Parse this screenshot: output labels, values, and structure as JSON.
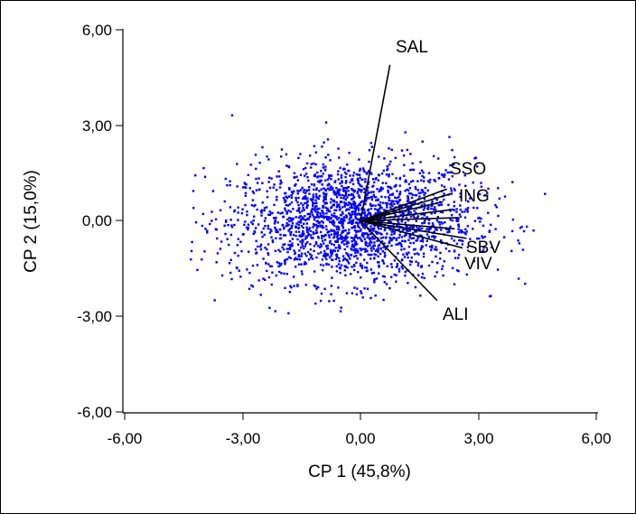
{
  "chart_data": {
    "type": "scatter",
    "title": "",
    "xlabel": "CP 1 (45,8%)",
    "ylabel": "CP 2 (15,0%)",
    "xlim": [
      -6,
      6
    ],
    "ylim": [
      -6,
      6
    ],
    "x_ticks": [
      "-6,00",
      "-3,00",
      "0,00",
      "3,00",
      "6,00"
    ],
    "y_ticks": [
      "6,00",
      "3,00",
      "0,00",
      "-3,00",
      "-6,00"
    ],
    "grid": false,
    "point_color": "#0000ff",
    "vector_color": "#000000",
    "points_note_hidden": true,
    "vectors": [
      {
        "label": "SAL",
        "x": 0.75,
        "y": 4.9
      },
      {
        "label": "SSO",
        "x": 2.2,
        "y": 1.0
      },
      {
        "label": "ING",
        "x": 2.3,
        "y": 0.85
      },
      {
        "label": "SBV",
        "x": 2.6,
        "y": -0.85
      },
      {
        "label": "VIV",
        "x": 2.7,
        "y": -0.55
      },
      {
        "label": "ALI",
        "x": 1.95,
        "y": -2.5
      }
    ]
  }
}
